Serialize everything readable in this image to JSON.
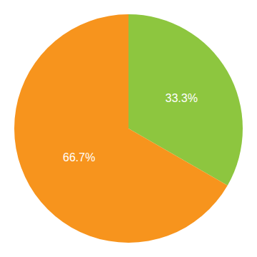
{
  "chart_data": {
    "type": "pie",
    "values": [
      33.3,
      66.7
    ],
    "value_labels": [
      "33.3%",
      "66.7%"
    ],
    "colors": [
      "#8dc63f",
      "#f7941d"
    ],
    "data_labels": true
  }
}
